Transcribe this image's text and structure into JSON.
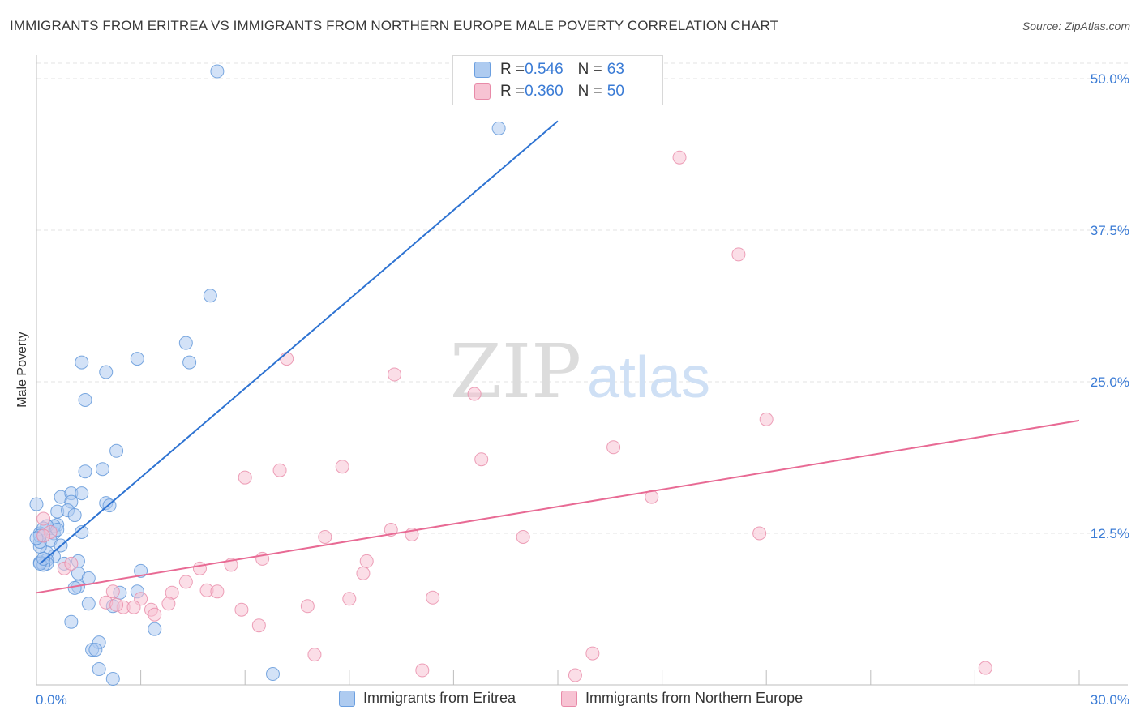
{
  "header": {
    "title": "IMMIGRANTS FROM ERITREA VS IMMIGRANTS FROM NORTHERN EUROPE MALE POVERTY CORRELATION CHART",
    "source": "Source: ZipAtlas.com"
  },
  "watermark": {
    "zip": "ZIP",
    "atlas": "atlas"
  },
  "correlation_legend": {
    "rows": [
      {
        "r_label": "R = ",
        "r_value": "0.546",
        "n_label": "N = ",
        "n_value": "63",
        "color": "#aecbf0",
        "stroke": "#6b9fe0"
      },
      {
        "r_label": "R = ",
        "r_value": "0.360",
        "n_label": "N = ",
        "n_value": "50",
        "color": "#f7c3d3",
        "stroke": "#e88aa8"
      }
    ]
  },
  "bottom_legend": {
    "items": [
      {
        "label": "Immigrants from Eritrea",
        "color": "#aecbf0",
        "stroke": "#6b9fe0"
      },
      {
        "label": "Immigrants from Northern Europe",
        "color": "#f7c3d3",
        "stroke": "#e88aa8"
      }
    ]
  },
  "chart_data": {
    "type": "scatter",
    "title": "IMMIGRANTS FROM ERITREA VS IMMIGRANTS FROM NORTHERN EUROPE MALE POVERTY CORRELATION CHART",
    "xlabel": "",
    "ylabel": "Male Poverty",
    "xlim": [
      0,
      30
    ],
    "ylim": [
      0,
      50
    ],
    "x_tick_labels": [
      "0.0%",
      "30.0%"
    ],
    "y_tick_labels": [
      "12.5%",
      "25.0%",
      "37.5%",
      "50.0%"
    ],
    "y_ticks": [
      12.5,
      25.0,
      37.5,
      50.0
    ],
    "x_minor_ticks": [
      0,
      3,
      6,
      9,
      12,
      15,
      18,
      21,
      24,
      27,
      30
    ],
    "grid": true,
    "series": [
      {
        "name": "Immigrants from Eritrea",
        "color": "#aecbf0",
        "stroke": "#5b93d8",
        "trend_color": "#2e73d2",
        "trend": {
          "x0": 0.1,
          "y0": 10.0,
          "x1": 15.0,
          "y1": 46.5
        },
        "points": [
          [
            5.2,
            50.6
          ],
          [
            13.3,
            45.9
          ],
          [
            5.0,
            32.1
          ],
          [
            4.3,
            28.2
          ],
          [
            2.9,
            26.9
          ],
          [
            4.4,
            26.6
          ],
          [
            1.3,
            26.6
          ],
          [
            2.0,
            25.8
          ],
          [
            1.4,
            23.5
          ],
          [
            2.3,
            19.3
          ],
          [
            1.4,
            17.6
          ],
          [
            1.9,
            17.8
          ],
          [
            0.7,
            15.5
          ],
          [
            1.0,
            15.8
          ],
          [
            1.3,
            15.8
          ],
          [
            0.0,
            14.9
          ],
          [
            1.0,
            15.1
          ],
          [
            2.0,
            15.0
          ],
          [
            2.1,
            14.8
          ],
          [
            0.6,
            14.3
          ],
          [
            0.9,
            14.4
          ],
          [
            1.1,
            14.0
          ],
          [
            0.6,
            13.2
          ],
          [
            0.5,
            12.5
          ],
          [
            0.5,
            13.1
          ],
          [
            0.3,
            13.1
          ],
          [
            0.1,
            12.5
          ],
          [
            0.2,
            12.9
          ],
          [
            0.6,
            12.8
          ],
          [
            1.3,
            12.6
          ],
          [
            0.4,
            11.9
          ],
          [
            0.7,
            11.5
          ],
          [
            0.5,
            10.6
          ],
          [
            0.3,
            10.9
          ],
          [
            0.1,
            11.4
          ],
          [
            0.3,
            10.3
          ],
          [
            0.3,
            10.0
          ],
          [
            0.1,
            10.1
          ],
          [
            0.2,
            9.9
          ],
          [
            0.8,
            10.0
          ],
          [
            0.1,
            11.8
          ],
          [
            1.2,
            10.2
          ],
          [
            1.2,
            9.2
          ],
          [
            1.5,
            8.8
          ],
          [
            1.2,
            8.1
          ],
          [
            1.1,
            8.0
          ],
          [
            3.0,
            9.4
          ],
          [
            2.4,
            7.6
          ],
          [
            2.9,
            7.7
          ],
          [
            1.5,
            6.7
          ],
          [
            2.2,
            6.5
          ],
          [
            1.0,
            5.2
          ],
          [
            3.4,
            4.6
          ],
          [
            1.8,
            3.5
          ],
          [
            1.6,
            2.9
          ],
          [
            1.7,
            2.9
          ],
          [
            1.8,
            1.3
          ],
          [
            2.2,
            0.5
          ],
          [
            6.8,
            0.9
          ],
          [
            0.1,
            12.3
          ],
          [
            0.0,
            12.1
          ],
          [
            0.1,
            10.0
          ],
          [
            0.2,
            10.4
          ]
        ]
      },
      {
        "name": "Immigrants from Northern Europe",
        "color": "#f7c3d3",
        "stroke": "#e88aa8",
        "trend_color": "#e86a94",
        "trend": {
          "x0": 0.0,
          "y0": 7.6,
          "x1": 30.0,
          "y1": 21.8
        },
        "points": [
          [
            18.5,
            43.5
          ],
          [
            20.2,
            35.5
          ],
          [
            7.2,
            26.9
          ],
          [
            10.3,
            25.6
          ],
          [
            12.6,
            24.0
          ],
          [
            21.0,
            21.9
          ],
          [
            16.6,
            19.6
          ],
          [
            12.8,
            18.6
          ],
          [
            8.8,
            18.0
          ],
          [
            7.0,
            17.7
          ],
          [
            6.0,
            17.1
          ],
          [
            17.7,
            15.5
          ],
          [
            10.2,
            12.8
          ],
          [
            10.8,
            12.4
          ],
          [
            8.3,
            12.2
          ],
          [
            14.0,
            12.2
          ],
          [
            20.8,
            12.5
          ],
          [
            6.5,
            10.4
          ],
          [
            9.5,
            10.2
          ],
          [
            5.6,
            9.9
          ],
          [
            4.7,
            9.6
          ],
          [
            9.4,
            9.2
          ],
          [
            4.3,
            8.5
          ],
          [
            4.9,
            7.8
          ],
          [
            5.2,
            7.7
          ],
          [
            3.9,
            7.6
          ],
          [
            2.2,
            7.7
          ],
          [
            3.0,
            7.1
          ],
          [
            3.8,
            6.7
          ],
          [
            11.4,
            7.2
          ],
          [
            9.0,
            7.1
          ],
          [
            0.8,
            9.6
          ],
          [
            1.0,
            10.0
          ],
          [
            0.4,
            12.6
          ],
          [
            0.2,
            13.7
          ],
          [
            0.2,
            12.3
          ],
          [
            2.0,
            6.8
          ],
          [
            2.5,
            6.4
          ],
          [
            2.8,
            6.4
          ],
          [
            3.3,
            6.2
          ],
          [
            3.4,
            5.8
          ],
          [
            5.9,
            6.2
          ],
          [
            7.8,
            6.5
          ],
          [
            6.4,
            4.9
          ],
          [
            8.0,
            2.5
          ],
          [
            16.0,
            2.6
          ],
          [
            11.1,
            1.2
          ],
          [
            15.5,
            0.8
          ],
          [
            27.3,
            1.4
          ],
          [
            2.3,
            6.6
          ]
        ]
      }
    ]
  }
}
